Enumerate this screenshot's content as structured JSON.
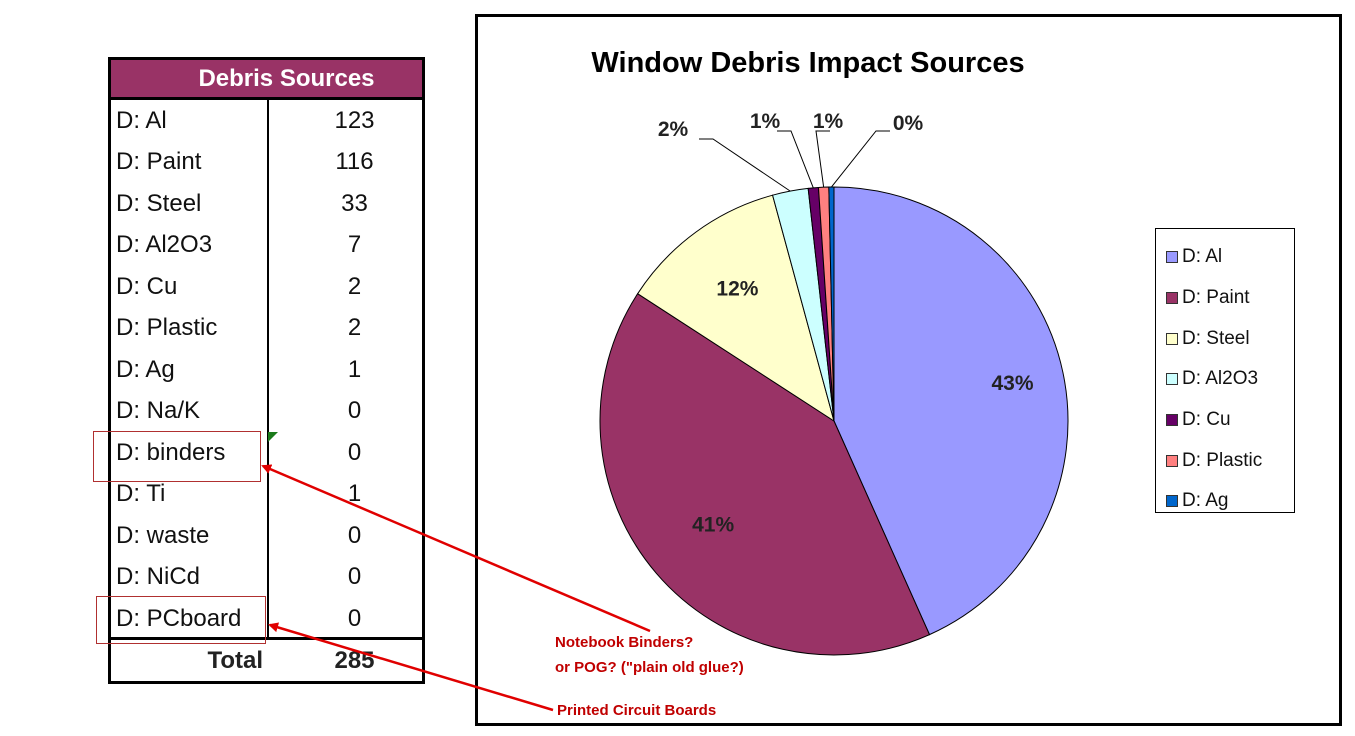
{
  "table": {
    "header": "Debris Sources",
    "rows": [
      {
        "name": "D: Al",
        "count": "123"
      },
      {
        "name": "D: Paint",
        "count": "116"
      },
      {
        "name": "D: Steel",
        "count": "33"
      },
      {
        "name": "D: Al2O3",
        "count": "7"
      },
      {
        "name": "D: Cu",
        "count": "2"
      },
      {
        "name": "D: Plastic",
        "count": "2"
      },
      {
        "name": "D: Ag",
        "count": "1"
      },
      {
        "name": "D: Na/K",
        "count": "0"
      },
      {
        "name": "D: binders",
        "count": "0"
      },
      {
        "name": "D: Ti",
        "count": "1"
      },
      {
        "name": "D: waste",
        "count": "0"
      },
      {
        "name": "D: NiCd",
        "count": "0"
      },
      {
        "name": "D: PCboard",
        "count": "0"
      }
    ],
    "total_label": "Total",
    "total_value": "285"
  },
  "chart_data": {
    "type": "pie",
    "title": "Window Debris Impact Sources",
    "categories": [
      "D: Al",
      "D: Paint",
      "D: Steel",
      "D: Al2O3",
      "D: Cu",
      "D: Plastic",
      "D: Ag"
    ],
    "values": [
      123,
      116,
      33,
      7,
      2,
      2,
      1
    ],
    "labels": [
      "43%",
      "41%",
      "12%",
      "2%",
      "1%",
      "1%",
      "0%"
    ],
    "colors": [
      "#9999ff",
      "#993366",
      "#ffffcc",
      "#ccffff",
      "#660066",
      "#ff8080",
      "#0066cc"
    ],
    "legend_position": "right"
  },
  "annotations": {
    "binders_note_line1": "Notebook Binders?",
    "binders_note_line2": "or POG?  (\"plain old glue?)",
    "pcboard_note": "Printed Circuit Boards",
    "color": "#cc0000"
  }
}
